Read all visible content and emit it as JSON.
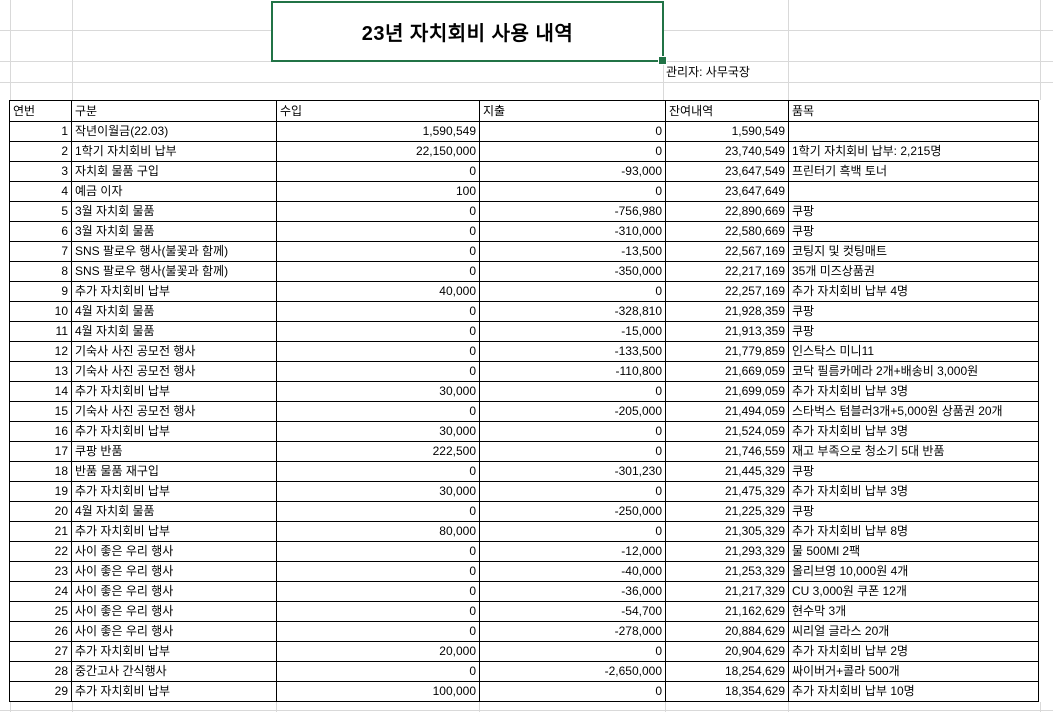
{
  "title": "23년 자치회비 사용 내역",
  "manager_label": "관리자: 사무국장",
  "colors": {
    "selection_green": "#217346",
    "gridline": "#d9d9d9",
    "table_border": "#000000",
    "background": "#ffffff"
  },
  "table": {
    "headers": [
      "연번",
      "구분",
      "수입",
      "지출",
      "잔여내역",
      "품목"
    ],
    "rows": [
      [
        "1",
        "작년이월금(22.03)",
        "1,590,549",
        "0",
        "1,590,549",
        ""
      ],
      [
        "2",
        "1학기 자치회비 납부",
        "22,150,000",
        "0",
        "23,740,549",
        "1학기 자치회비 납부: 2,215명"
      ],
      [
        "3",
        "자치회 물품 구입",
        "0",
        "-93,000",
        "23,647,549",
        "프린터기 흑백 토너"
      ],
      [
        "4",
        "예금 이자",
        "100",
        "0",
        "23,647,649",
        ""
      ],
      [
        "5",
        "3월 자치회 물품",
        "0",
        "-756,980",
        "22,890,669",
        "쿠팡"
      ],
      [
        "6",
        "3월 자치회 물품",
        "0",
        "-310,000",
        "22,580,669",
        "쿠팡"
      ],
      [
        "7",
        "SNS 팔로우 행사(불꽃과 함께)",
        "0",
        "-13,500",
        "22,567,169",
        "코팅지 및 컷팅매트"
      ],
      [
        "8",
        "SNS 팔로우 행사(불꽃과 함께)",
        "0",
        "-350,000",
        "22,217,169",
        "35개 미즈상품권"
      ],
      [
        "9",
        "추가 자치회비 납부",
        "40,000",
        "0",
        "22,257,169",
        "추가 자치회비 납부 4명"
      ],
      [
        "10",
        "4월 자치회 물품",
        "0",
        "-328,810",
        "21,928,359",
        "쿠팡"
      ],
      [
        "11",
        "4월 자치회 물품",
        "0",
        "-15,000",
        "21,913,359",
        "쿠팡"
      ],
      [
        "12",
        "기숙사 사진 공모전 행사",
        "0",
        "-133,500",
        "21,779,859",
        "인스탁스 미니11"
      ],
      [
        "13",
        "기숙사 사진 공모전 행사",
        "0",
        "-110,800",
        "21,669,059",
        "코닥 필름카메라 2개+배송비 3,000원"
      ],
      [
        "14",
        "추가 자치회비 납부",
        "30,000",
        "0",
        "21,699,059",
        "추가 자치회비 납부 3명"
      ],
      [
        "15",
        "기숙사 사진 공모전 행사",
        "0",
        "-205,000",
        "21,494,059",
        "스타벅스 텀블러3개+5,000원 상품권 20개"
      ],
      [
        "16",
        "추가 자치회비 납부",
        "30,000",
        "0",
        "21,524,059",
        "추가 자치회비 납부 3명"
      ],
      [
        "17",
        "쿠팡 반품",
        "222,500",
        "0",
        "21,746,559",
        "재고 부족으로 청소기 5대 반품"
      ],
      [
        "18",
        "반품 물품 재구입",
        "0",
        "-301,230",
        "21,445,329",
        "쿠팡"
      ],
      [
        "19",
        "추가 자치회비 납부",
        "30,000",
        "0",
        "21,475,329",
        "추가 자치회비 납부 3명"
      ],
      [
        "20",
        "4월 자치회 물품",
        "0",
        "-250,000",
        "21,225,329",
        "쿠팡"
      ],
      [
        "21",
        "추가 자치회비 납부",
        "80,000",
        "0",
        "21,305,329",
        "추가 자치회비 납부 8명"
      ],
      [
        "22",
        "사이 좋은 우리 행사",
        "0",
        "-12,000",
        "21,293,329",
        "물 500Ml 2팩"
      ],
      [
        "23",
        "사이 좋은 우리 행사",
        "0",
        "-40,000",
        "21,253,329",
        "올리브영 10,000원 4개"
      ],
      [
        "24",
        "사이 좋은 우리 행사",
        "0",
        "-36,000",
        "21,217,329",
        "CU 3,000원 쿠폰 12개"
      ],
      [
        "25",
        "사이 좋은 우리 행사",
        "0",
        "-54,700",
        "21,162,629",
        "현수막 3개"
      ],
      [
        "26",
        "사이 좋은 우리 행사",
        "0",
        "-278,000",
        "20,884,629",
        "씨리얼 글라스 20개"
      ],
      [
        "27",
        "추가 자치회비 납부",
        "20,000",
        "0",
        "20,904,629",
        "추가 자치회비 납부 2명"
      ],
      [
        "28",
        "중간고사 간식행사",
        "0",
        "-2,650,000",
        "18,254,629",
        "싸이버거+콜라 500개"
      ],
      [
        "29",
        "추가 자치회비 납부",
        "100,000",
        "0",
        "18,354,629",
        "추가 자치회비 납부 10명"
      ]
    ]
  }
}
